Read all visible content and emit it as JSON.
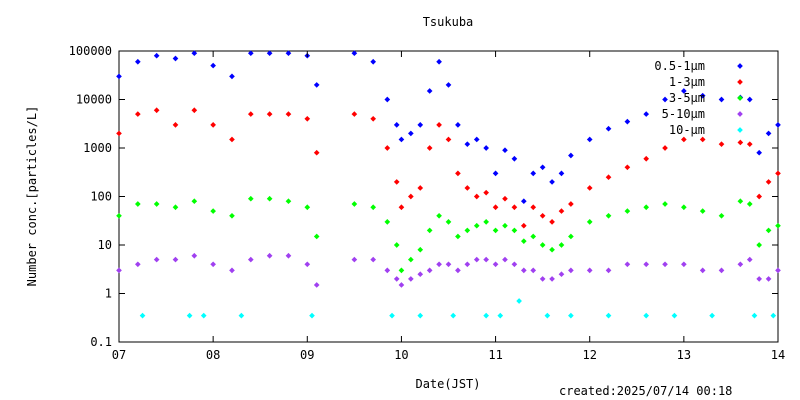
{
  "chart_data": {
    "type": "scatter",
    "title": "Tsukuba",
    "xlabel": "Date(JST)",
    "ylabel": "Number conc.[particles/L]",
    "x_ticks": [
      "07",
      "08",
      "09",
      "10",
      "11",
      "12",
      "13",
      "14"
    ],
    "y_ticks": [
      "0.1",
      "1",
      "10",
      "100",
      "1000",
      "10000",
      "100000"
    ],
    "xlim": [
      7,
      14
    ],
    "ylim": [
      0.1,
      100000
    ],
    "y_scale": "log",
    "grid": false,
    "legend_position": "top-right",
    "series": [
      {
        "name": "0.5-1μm",
        "color": "#0000ff",
        "x": [
          7.0,
          7.2,
          7.4,
          7.6,
          7.8,
          8.0,
          8.2,
          8.4,
          8.6,
          8.8,
          9.0,
          9.1,
          9.5,
          9.7,
          9.85,
          9.95,
          10.0,
          10.1,
          10.2,
          10.3,
          10.4,
          10.5,
          10.6,
          10.7,
          10.8,
          10.9,
          11.0,
          11.1,
          11.2,
          11.3,
          11.4,
          11.5,
          11.6,
          11.7,
          11.8,
          12.0,
          12.2,
          12.4,
          12.6,
          12.8,
          13.0,
          13.2,
          13.4,
          13.6,
          13.7,
          13.8,
          13.9,
          14.0
        ],
        "y": [
          30000,
          60000,
          80000,
          70000,
          90000,
          50000,
          30000,
          90000,
          90000,
          90000,
          80000,
          20000,
          90000,
          60000,
          10000,
          3000,
          1500,
          2000,
          3000,
          15000,
          60000,
          20000,
          3000,
          1200,
          1500,
          1000,
          300,
          900,
          600,
          80,
          300,
          400,
          200,
          300,
          700,
          1500,
          2500,
          3500,
          5000,
          10000,
          15000,
          12000,
          10000,
          11000,
          10000,
          800,
          2000,
          3000
        ]
      },
      {
        "name": "1-3μm",
        "color": "#ff0000",
        "x": [
          7.0,
          7.2,
          7.4,
          7.6,
          7.8,
          8.0,
          8.2,
          8.4,
          8.6,
          8.8,
          9.0,
          9.1,
          9.5,
          9.7,
          9.85,
          9.95,
          10.0,
          10.1,
          10.2,
          10.3,
          10.4,
          10.5,
          10.6,
          10.7,
          10.8,
          10.9,
          11.0,
          11.1,
          11.2,
          11.3,
          11.4,
          11.5,
          11.6,
          11.7,
          11.8,
          12.0,
          12.2,
          12.4,
          12.6,
          12.8,
          13.0,
          13.2,
          13.4,
          13.6,
          13.7,
          13.8,
          13.9,
          14.0
        ],
        "y": [
          2000,
          5000,
          6000,
          3000,
          6000,
          3000,
          1500,
          5000,
          5000,
          5000,
          4000,
          800,
          5000,
          4000,
          1000,
          200,
          60,
          100,
          150,
          1000,
          3000,
          1500,
          300,
          150,
          100,
          120,
          60,
          90,
          60,
          25,
          60,
          40,
          30,
          50,
          70,
          150,
          250,
          400,
          600,
          1000,
          1500,
          1500,
          1200,
          1300,
          1200,
          100,
          200,
          300
        ]
      },
      {
        "name": "3-5μm",
        "color": "#00ff00",
        "x": [
          7.0,
          7.2,
          7.4,
          7.6,
          7.8,
          8.0,
          8.2,
          8.4,
          8.6,
          8.8,
          9.0,
          9.1,
          9.5,
          9.7,
          9.85,
          9.95,
          10.0,
          10.1,
          10.2,
          10.3,
          10.4,
          10.5,
          10.6,
          10.7,
          10.8,
          10.9,
          11.0,
          11.1,
          11.2,
          11.3,
          11.4,
          11.5,
          11.6,
          11.7,
          11.8,
          12.0,
          12.2,
          12.4,
          12.6,
          12.8,
          13.0,
          13.2,
          13.4,
          13.6,
          13.7,
          13.8,
          13.9,
          14.0
        ],
        "y": [
          40,
          70,
          70,
          60,
          80,
          50,
          40,
          90,
          90,
          80,
          60,
          15,
          70,
          60,
          30,
          10,
          3,
          5,
          8,
          20,
          40,
          30,
          15,
          20,
          25,
          30,
          20,
          25,
          20,
          12,
          15,
          10,
          8,
          10,
          15,
          30,
          40,
          50,
          60,
          70,
          60,
          50,
          40,
          80,
          70,
          10,
          20,
          25
        ]
      },
      {
        "name": "5-10μm",
        "color": "#a040f0",
        "x": [
          7.0,
          7.2,
          7.4,
          7.6,
          7.8,
          8.0,
          8.2,
          8.4,
          8.6,
          8.8,
          9.0,
          9.1,
          9.5,
          9.7,
          9.85,
          9.95,
          10.0,
          10.1,
          10.2,
          10.3,
          10.4,
          10.5,
          10.6,
          10.7,
          10.8,
          10.9,
          11.0,
          11.1,
          11.2,
          11.3,
          11.4,
          11.5,
          11.6,
          11.7,
          11.8,
          12.0,
          12.2,
          12.4,
          12.6,
          12.8,
          13.0,
          13.2,
          13.4,
          13.6,
          13.7,
          13.8,
          13.9,
          14.0
        ],
        "y": [
          3,
          4,
          5,
          5,
          6,
          4,
          3,
          5,
          6,
          6,
          4,
          1.5,
          5,
          5,
          3,
          2,
          1.5,
          2,
          2.5,
          3,
          4,
          4,
          3,
          4,
          5,
          5,
          4,
          5,
          4,
          3,
          3,
          2,
          2,
          2.5,
          3,
          3,
          3,
          4,
          4,
          4,
          4,
          3,
          3,
          4,
          5,
          2,
          2,
          3
        ]
      },
      {
        "name": "10-μm",
        "color": "#00ffff",
        "x": [
          7.25,
          7.75,
          7.9,
          8.3,
          9.05,
          9.9,
          10.2,
          10.55,
          10.9,
          11.05,
          11.25,
          11.55,
          11.8,
          12.2,
          12.6,
          12.9,
          13.3,
          13.75,
          13.95
        ],
        "y": [
          0.35,
          0.35,
          0.35,
          0.35,
          0.35,
          0.35,
          0.35,
          0.35,
          0.35,
          0.35,
          0.7,
          0.35,
          0.35,
          0.35,
          0.35,
          0.35,
          0.35,
          0.35,
          0.35
        ]
      }
    ]
  },
  "footer": {
    "created_text": "created:2025/07/14 00:18"
  }
}
